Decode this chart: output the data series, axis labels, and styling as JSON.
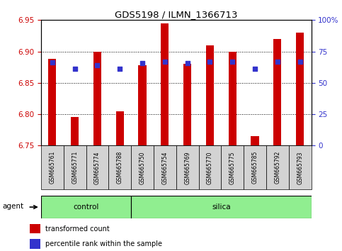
{
  "title": "GDS5198 / ILMN_1366713",
  "samples": [
    "GSM665761",
    "GSM665771",
    "GSM665774",
    "GSM665788",
    "GSM665750",
    "GSM665754",
    "GSM665769",
    "GSM665770",
    "GSM665775",
    "GSM665785",
    "GSM665792",
    "GSM665793"
  ],
  "red_values": [
    6.888,
    6.795,
    6.9,
    6.805,
    6.878,
    6.945,
    6.88,
    6.91,
    6.9,
    6.765,
    6.92,
    6.93
  ],
  "blue_values": [
    6.883,
    6.872,
    6.878,
    6.872,
    6.882,
    6.884,
    6.882,
    6.884,
    6.884,
    6.872,
    6.884,
    6.884
  ],
  "ylim_left": [
    6.75,
    6.95
  ],
  "ylim_right": [
    0,
    100
  ],
  "control_samples": 4,
  "total_samples": 12,
  "control_label": "control",
  "silica_label": "silica",
  "agent_label": "agent",
  "legend_red": "transformed count",
  "legend_blue": "percentile rank within the sample",
  "yticks_left": [
    6.75,
    6.8,
    6.85,
    6.9,
    6.95
  ],
  "yticks_right": [
    0,
    25,
    50,
    75,
    100
  ],
  "ytick_right_labels": [
    "0",
    "25",
    "50",
    "75",
    "100%"
  ],
  "bar_color": "#CC0000",
  "blue_color": "#3333CC",
  "bar_bottom": 6.75,
  "bar_width": 0.35
}
